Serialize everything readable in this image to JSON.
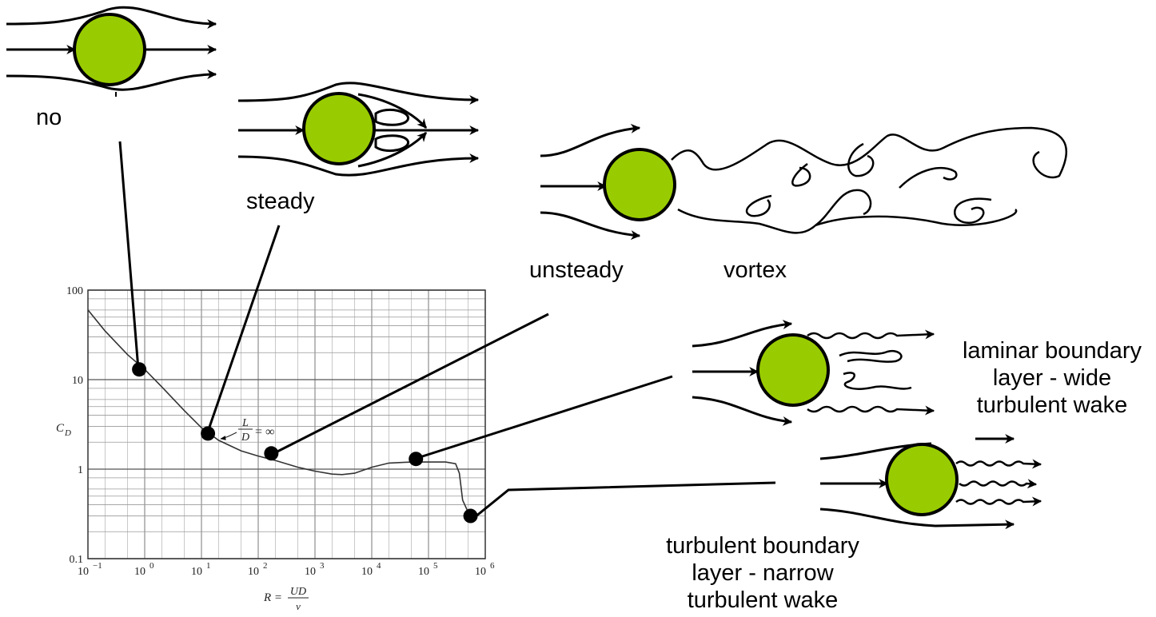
{
  "labels": {
    "no": "no",
    "steady": "steady",
    "unsteady": "unsteady",
    "vortex": "vortex",
    "laminar": [
      "laminar boundary",
      "layer - wide",
      "turbulent wake"
    ],
    "turbulent": [
      "turbulent boundary",
      "layer - narrow",
      "turbulent wake"
    ]
  },
  "chart_data": {
    "type": "line",
    "xscale": "log",
    "yscale": "log",
    "xlim": [
      0.1,
      1000000
    ],
    "ylim": [
      0.1,
      100
    ],
    "x_ticks": [
      "10",
      "10",
      "10",
      "10",
      "10",
      "10",
      "10",
      "10"
    ],
    "x_tick_exponents": [
      "−1",
      "0",
      "1",
      "2",
      "3",
      "4",
      "5",
      "6"
    ],
    "y_ticks": [
      "100",
      "10",
      "1",
      "0.1"
    ],
    "ylabel": "C",
    "ylabel_sub": "D",
    "xlabel_prefix": "R =",
    "xlabel_num": "UD",
    "xlabel_den": "ν",
    "annotation": {
      "num": "L",
      "den": "D",
      "rest": "= ∞"
    },
    "grid": true,
    "series": [
      {
        "x": [
          0.1,
          0.2,
          0.5,
          1,
          2,
          5,
          10,
          20,
          50,
          100,
          200,
          500,
          1000,
          2000,
          3000,
          5000,
          10000,
          20000,
          50000,
          100000,
          200000,
          300000,
          350000,
          400000,
          500000,
          600000
        ],
        "values": [
          60,
          35,
          19,
          13,
          8.3,
          4.5,
          2.9,
          2.1,
          1.6,
          1.4,
          1.25,
          1.05,
          0.95,
          0.88,
          0.87,
          0.9,
          1.05,
          1.17,
          1.2,
          1.2,
          1.2,
          1.15,
          0.9,
          0.45,
          0.33,
          0.3
        ]
      }
    ],
    "highlighted_points": [
      {
        "x": 0.8,
        "y": 13
      },
      {
        "x": 13,
        "y": 2.5
      },
      {
        "x": 170,
        "y": 1.5
      },
      {
        "x": 60000,
        "y": 1.3
      },
      {
        "x": 550000,
        "y": 0.3
      }
    ]
  },
  "colors": {
    "cylinder_fill": "#99cc00",
    "stroke": "#000000",
    "grid": "#777777",
    "curve": "#333333"
  }
}
